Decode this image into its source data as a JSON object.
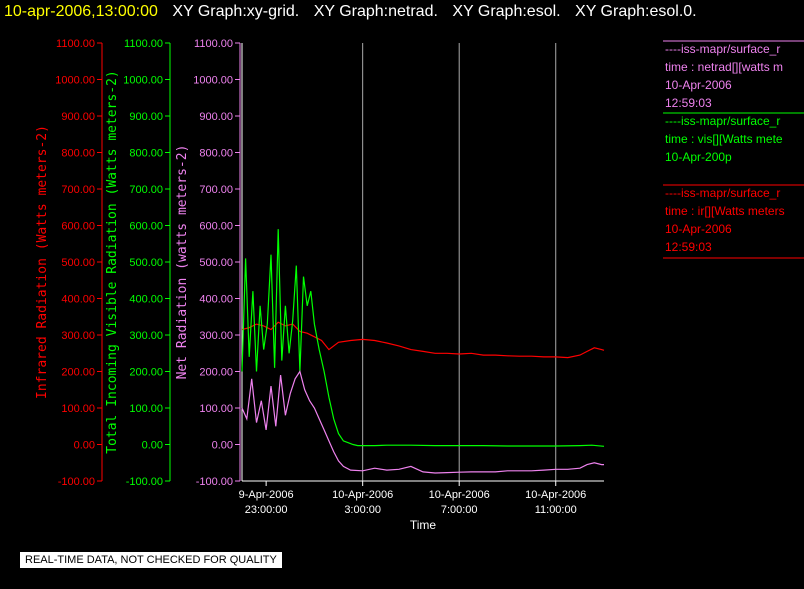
{
  "header": {
    "timestamp": "10-apr-2006,13:00:00",
    "titles": [
      "XY Graph:xy-grid.",
      "XY Graph:netrad.",
      "XY Graph:esol.",
      "XY Graph:esol.0."
    ]
  },
  "disclaimer": "REAL-TIME DATA, NOT CHECKED FOR QUALITY",
  "legend": [
    {
      "lines": [
        "----iss-mapr/surface_r",
        "time : netrad[][watts m",
        "10-Apr-2006",
        "12:59:03"
      ],
      "color": "#ee82ee"
    },
    {
      "lines": [
        "----iss-mapr/surface_r",
        "time : vis[][Watts mete",
        "10-Apr-200p"
      ],
      "color": "#00ff00"
    },
    {
      "lines": [
        "----iss-mapr/surface_r",
        "time : ir[][Watts meters",
        "10-Apr-2006",
        "12:59:03"
      ],
      "color": "#ff0000"
    }
  ],
  "chart_data": {
    "type": "line",
    "xlabel": "Time",
    "x_ticks": [
      {
        "x": 23,
        "l1": "9-Apr-2006",
        "l2": "23:00:00"
      },
      {
        "x": 27,
        "l1": "10-Apr-2006",
        "l2": "3:00:00"
      },
      {
        "x": 31,
        "l1": "10-Apr-2006",
        "l2": "7:00:00"
      },
      {
        "x": 35,
        "l1": "10-Apr-2006",
        "l2": "11:00:00"
      }
    ],
    "x_unit": "hours since 9-Apr-2006 00:00",
    "xlim": [
      22,
      37
    ],
    "grid_x": [
      27,
      31,
      35
    ],
    "y_axes": [
      {
        "label": "Infrared Radiation (Watts meters-2)",
        "color": "#ff0000",
        "ylim": [
          -100,
          1100
        ],
        "ticks": [
          "-100.00",
          "0.00",
          "100.00",
          "200.00",
          "300.00",
          "400.00",
          "500.00",
          "600.00",
          "700.00",
          "800.00",
          "900.00",
          "1000.00",
          "1100.00"
        ]
      },
      {
        "label": "Total Incoming Visible Radiation (Watts meters-2)",
        "color": "#00ff00",
        "ylim": [
          -100,
          1100
        ],
        "ticks": [
          "-100.00",
          "0.00",
          "100.00",
          "200.00",
          "300.00",
          "400.00",
          "500.00",
          "600.00",
          "700.00",
          "800.00",
          "900.00",
          "1000.00",
          "1100.00"
        ]
      },
      {
        "label": "Net Radiation (watts meters-2)",
        "color": "#ee82ee",
        "ylim": [
          -100,
          1100
        ],
        "ticks": [
          "-100.00",
          "0.00",
          "100.00",
          "200.00",
          "300.00",
          "400.00",
          "500.00",
          "600.00",
          "700.00",
          "800.00",
          "900.00",
          "1000.00",
          "1100.00"
        ]
      }
    ],
    "series": [
      {
        "name": "ir",
        "color": "#ff0000",
        "x": [
          22.0,
          22.3,
          22.6,
          22.9,
          23.2,
          23.5,
          23.8,
          24.1,
          24.4,
          24.7,
          25.0,
          25.3,
          25.6,
          26.0,
          26.5,
          27.0,
          27.5,
          28.0,
          28.5,
          29.0,
          29.5,
          30.0,
          30.5,
          31.0,
          31.5,
          32.0,
          32.5,
          33.0,
          33.5,
          34.0,
          34.5,
          35.0,
          35.5,
          36.0,
          36.3,
          36.6,
          36.9,
          37.0
        ],
        "y": [
          315,
          320,
          330,
          325,
          315,
          335,
          325,
          330,
          310,
          305,
          295,
          285,
          260,
          280,
          285,
          288,
          285,
          278,
          270,
          260,
          255,
          250,
          250,
          248,
          250,
          245,
          245,
          243,
          242,
          242,
          240,
          240,
          238,
          245,
          255,
          265,
          260,
          258
        ]
      },
      {
        "name": "vis",
        "color": "#00ff00",
        "x": [
          22.0,
          22.15,
          22.3,
          22.45,
          22.6,
          22.75,
          22.9,
          23.05,
          23.2,
          23.35,
          23.5,
          23.65,
          23.8,
          23.95,
          24.1,
          24.25,
          24.4,
          24.55,
          24.7,
          24.85,
          25.0,
          25.2,
          25.4,
          25.6,
          25.8,
          26.0,
          26.2,
          26.4,
          26.6,
          26.8,
          27.0,
          27.5,
          28.0,
          29.0,
          30.0,
          31.0,
          32.0,
          33.0,
          34.0,
          35.0,
          36.0,
          36.5,
          37.0
        ],
        "y": [
          200,
          510,
          240,
          420,
          200,
          380,
          260,
          330,
          520,
          210,
          590,
          230,
          380,
          250,
          340,
          490,
          200,
          460,
          380,
          420,
          330,
          260,
          200,
          130,
          70,
          30,
          10,
          5,
          0,
          -3,
          -3,
          -3,
          -2,
          -2,
          -3,
          -3,
          -3,
          -4,
          -4,
          -4,
          -3,
          -2,
          -5
        ]
      },
      {
        "name": "netrad",
        "color": "#ee82ee",
        "x": [
          22.0,
          22.2,
          22.4,
          22.6,
          22.8,
          23.0,
          23.2,
          23.4,
          23.6,
          23.8,
          24.0,
          24.2,
          24.4,
          24.6,
          24.8,
          25.0,
          25.2,
          25.4,
          25.6,
          25.8,
          26.0,
          26.2,
          26.5,
          27.0,
          27.5,
          28.0,
          28.5,
          29.0,
          29.5,
          30.0,
          30.5,
          31.0,
          31.5,
          32.0,
          32.5,
          33.0,
          33.5,
          34.0,
          34.5,
          35.0,
          35.5,
          36.0,
          36.3,
          36.6,
          36.9,
          37.0
        ],
        "y": [
          100,
          70,
          180,
          60,
          120,
          40,
          160,
          50,
          190,
          80,
          140,
          180,
          200,
          150,
          120,
          100,
          70,
          40,
          10,
          -20,
          -45,
          -60,
          -70,
          -72,
          -65,
          -70,
          -68,
          -60,
          -75,
          -78,
          -77,
          -76,
          -75,
          -75,
          -75,
          -72,
          -72,
          -72,
          -70,
          -68,
          -68,
          -65,
          -55,
          -50,
          -55,
          -55
        ]
      }
    ]
  }
}
